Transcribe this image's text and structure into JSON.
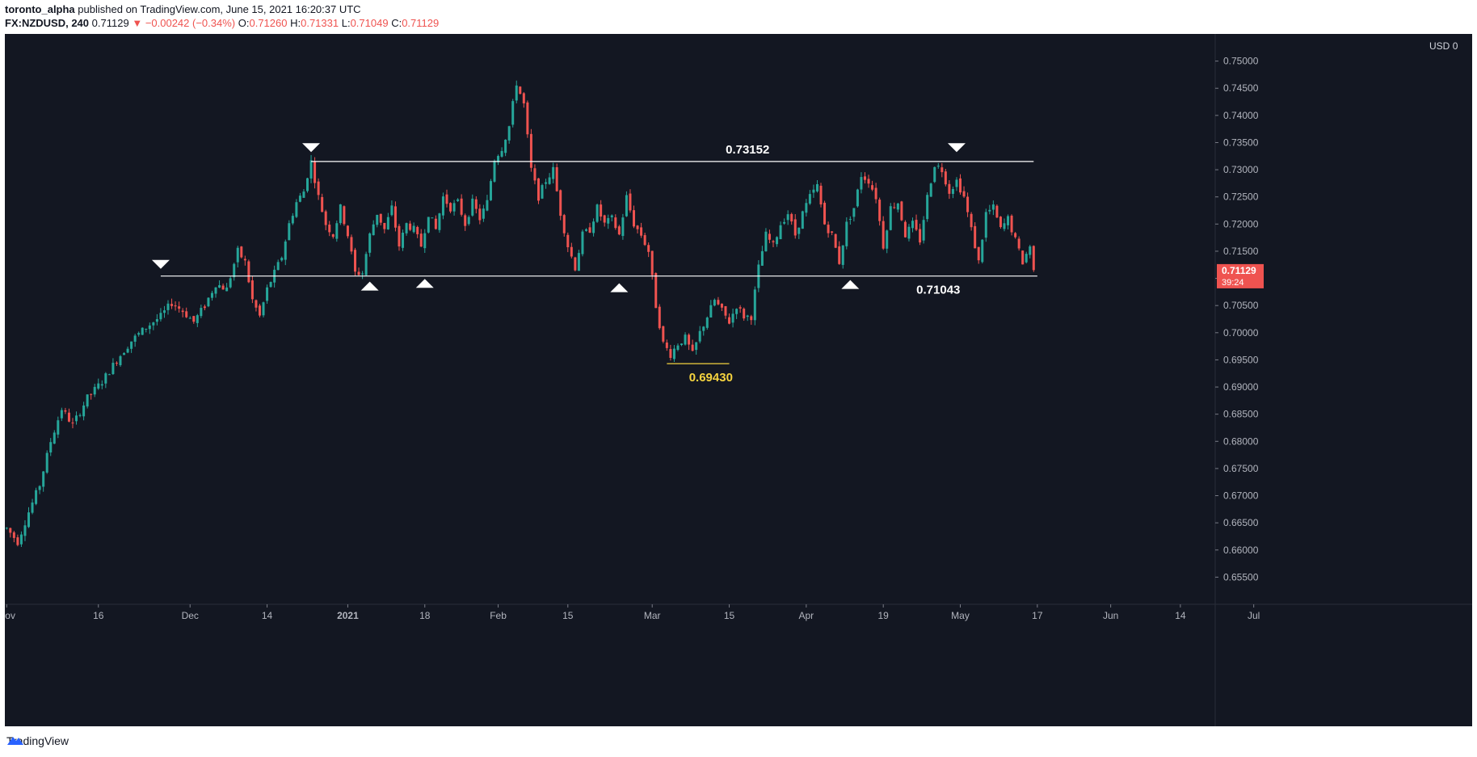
{
  "header": {
    "user": "toronto_alpha",
    "published": "published on TradingView.com, June 15, 2021 16:20:37 UTC",
    "symbol": "FX:NZDUSD, 240",
    "last": "0.71129",
    "change": "−0.00242 (−0.34%)",
    "open_label": "O:",
    "open": "0.71260",
    "high_label": "H:",
    "high": "0.71331",
    "low_label": "L:",
    "low": "0.71049",
    "close_label": "C:",
    "close": "0.71129",
    "down_arrow": "▼"
  },
  "currency": "USD",
  "currency_extra": "0",
  "footer": {
    "brand": "TradingView",
    "logo_icon": "tradingview-logo-icon"
  },
  "colors": {
    "background": "#131722",
    "up": "#26a69a",
    "down": "#ef5350",
    "lines": "#ffffff",
    "low_line": "#f5d33f",
    "axis_text": "#b2b5be",
    "price_tag": "#ef5350"
  },
  "chart_data": {
    "type": "candlestick",
    "timeframe": "240",
    "ylim": [
      0.65,
      0.755
    ],
    "yticks": [
      "0.75000",
      "0.74500",
      "0.74000",
      "0.73500",
      "0.73000",
      "0.72500",
      "0.72000",
      "0.71500",
      "0.71000",
      "0.70500",
      "0.70000",
      "0.69500",
      "0.69000",
      "0.68500",
      "0.68000",
      "0.67500",
      "0.67000",
      "0.66500",
      "0.66000",
      "0.65500"
    ],
    "xticks": [
      {
        "label": "Nov",
        "bold": false
      },
      {
        "label": "16",
        "bold": false
      },
      {
        "label": "Dec",
        "bold": false
      },
      {
        "label": "14",
        "bold": false
      },
      {
        "label": "2021",
        "bold": true
      },
      {
        "label": "18",
        "bold": false
      },
      {
        "label": "Feb",
        "bold": false
      },
      {
        "label": "15",
        "bold": false
      },
      {
        "label": "Mar",
        "bold": false
      },
      {
        "label": "15",
        "bold": false
      },
      {
        "label": "Apr",
        "bold": false
      },
      {
        "label": "19",
        "bold": false
      },
      {
        "label": "May",
        "bold": false
      },
      {
        "label": "17",
        "bold": false
      },
      {
        "label": "Jun",
        "bold": false
      },
      {
        "label": "14",
        "bold": false
      },
      {
        "label": "Jul",
        "bold": false
      }
    ],
    "price_path": [
      [
        0,
        0.664
      ],
      [
        3,
        0.6615
      ],
      [
        6,
        0.667
      ],
      [
        9,
        0.672
      ],
      [
        12,
        0.68
      ],
      [
        15,
        0.686
      ],
      [
        18,
        0.683
      ],
      [
        22,
        0.688
      ],
      [
        26,
        0.691
      ],
      [
        30,
        0.695
      ],
      [
        34,
        0.6985
      ],
      [
        38,
        0.701
      ],
      [
        42,
        0.703
      ],
      [
        45,
        0.7055
      ],
      [
        48,
        0.704
      ],
      [
        51,
        0.702
      ],
      [
        54,
        0.705
      ],
      [
        57,
        0.709
      ],
      [
        60,
        0.708
      ],
      [
        63,
        0.715
      ],
      [
        65,
        0.713
      ],
      [
        67,
        0.706
      ],
      [
        69,
        0.703
      ],
      [
        71,
        0.708
      ],
      [
        73,
        0.711
      ],
      [
        75,
        0.714
      ],
      [
        77,
        0.72
      ],
      [
        79,
        0.724
      ],
      [
        81,
        0.726
      ],
      [
        82,
        0.729
      ],
      [
        83,
        0.7315
      ],
      [
        85,
        0.725
      ],
      [
        87,
        0.72
      ],
      [
        89,
        0.718
      ],
      [
        91,
        0.723
      ],
      [
        93,
        0.718
      ],
      [
        95,
        0.711
      ],
      [
        97,
        0.711
      ],
      [
        99,
        0.718
      ],
      [
        101,
        0.722
      ],
      [
        103,
        0.719
      ],
      [
        105,
        0.723
      ],
      [
        107,
        0.716
      ],
      [
        109,
        0.72
      ],
      [
        111,
        0.719
      ],
      [
        113,
        0.716
      ],
      [
        115,
        0.722
      ],
      [
        117,
        0.719
      ],
      [
        119,
        0.725
      ],
      [
        121,
        0.723
      ],
      [
        123,
        0.724
      ],
      [
        125,
        0.72
      ],
      [
        127,
        0.724
      ],
      [
        129,
        0.721
      ],
      [
        131,
        0.724
      ],
      [
        133,
        0.732
      ],
      [
        135,
        0.734
      ],
      [
        137,
        0.738
      ],
      [
        139,
        0.746
      ],
      [
        141,
        0.742
      ],
      [
        143,
        0.73
      ],
      [
        145,
        0.725
      ],
      [
        147,
        0.728
      ],
      [
        149,
        0.73
      ],
      [
        151,
        0.722
      ],
      [
        153,
        0.716
      ],
      [
        155,
        0.712
      ],
      [
        157,
        0.718
      ],
      [
        159,
        0.719
      ],
      [
        161,
        0.723
      ],
      [
        163,
        0.72
      ],
      [
        165,
        0.721
      ],
      [
        167,
        0.718
      ],
      [
        169,
        0.725
      ],
      [
        171,
        0.72
      ],
      [
        173,
        0.718
      ],
      [
        175,
        0.715
      ],
      [
        177,
        0.705
      ],
      [
        179,
        0.698
      ],
      [
        181,
        0.696
      ],
      [
        183,
        0.698
      ],
      [
        185,
        0.699
      ],
      [
        187,
        0.696
      ],
      [
        189,
        0.7
      ],
      [
        191,
        0.703
      ],
      [
        193,
        0.706
      ],
      [
        195,
        0.704
      ],
      [
        197,
        0.702
      ],
      [
        199,
        0.705
      ],
      [
        201,
        0.703
      ],
      [
        203,
        0.703
      ],
      [
        205,
        0.712
      ],
      [
        207,
        0.718
      ],
      [
        209,
        0.716
      ],
      [
        211,
        0.72
      ],
      [
        213,
        0.722
      ],
      [
        215,
        0.718
      ],
      [
        217,
        0.722
      ],
      [
        219,
        0.725
      ],
      [
        221,
        0.727
      ],
      [
        223,
        0.72
      ],
      [
        225,
        0.718
      ],
      [
        227,
        0.713
      ],
      [
        229,
        0.72
      ],
      [
        231,
        0.723
      ],
      [
        233,
        0.729
      ],
      [
        235,
        0.728
      ],
      [
        237,
        0.725
      ],
      [
        239,
        0.716
      ],
      [
        241,
        0.723
      ],
      [
        243,
        0.724
      ],
      [
        245,
        0.718
      ],
      [
        247,
        0.72
      ],
      [
        249,
        0.717
      ],
      [
        251,
        0.725
      ],
      [
        253,
        0.731
      ],
      [
        255,
        0.73
      ],
      [
        257,
        0.726
      ],
      [
        259,
        0.728
      ],
      [
        261,
        0.725
      ],
      [
        263,
        0.719
      ],
      [
        265,
        0.713
      ],
      [
        267,
        0.722
      ],
      [
        269,
        0.723
      ],
      [
        271,
        0.719
      ],
      [
        273,
        0.721
      ],
      [
        275,
        0.717
      ],
      [
        277,
        0.713
      ],
      [
        279,
        0.716
      ],
      [
        280,
        0.7113
      ]
    ],
    "total_bars": 281,
    "x_slots": 330,
    "x_tick_slots": [
      0,
      25,
      50,
      71,
      93,
      114,
      134,
      153,
      176,
      197,
      218,
      239,
      260,
      281,
      301,
      320,
      340
    ],
    "horizontal_lines": [
      {
        "price": 0.73152,
        "label": "0.73152",
        "from_slot": 83,
        "to_slot": 280,
        "label_slot": 202,
        "color": "#ffffff"
      },
      {
        "price": 0.71043,
        "label": "0.71043",
        "from_slot": 42,
        "to_slot": 281,
        "label_slot": 254,
        "color": "#ffffff"
      },
      {
        "price": 0.6943,
        "label": "0.69430",
        "from_slot": 180,
        "to_slot": 197,
        "label_slot": 192,
        "color": "#f5d33f"
      }
    ],
    "markers": [
      {
        "dir": "down",
        "slot": 42,
        "price": 0.7125
      },
      {
        "dir": "down",
        "slot": 83,
        "price": 0.734
      },
      {
        "dir": "up",
        "slot": 99,
        "price": 0.7085
      },
      {
        "dir": "up",
        "slot": 114,
        "price": 0.709
      },
      {
        "dir": "up",
        "slot": 167,
        "price": 0.7082
      },
      {
        "dir": "up",
        "slot": 230,
        "price": 0.7088
      },
      {
        "dir": "down",
        "slot": 259,
        "price": 0.734
      }
    ],
    "last_price": {
      "label": "0.71129",
      "countdown": "39:24",
      "price": 0.71129
    }
  }
}
